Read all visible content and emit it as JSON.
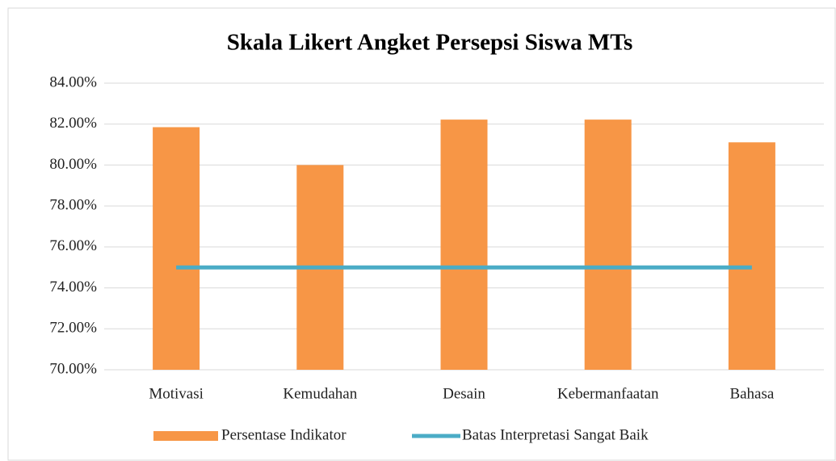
{
  "chart_data": {
    "type": "bar",
    "title": "Skala Likert Angket Persepsi Siswa MTs",
    "categories": [
      "Motivasi",
      "Kemudahan",
      "Desain",
      "Kebermanfaatan",
      "Bahasa"
    ],
    "series": [
      {
        "name": "Persentase Indikator",
        "type": "bar",
        "color": "#f79646",
        "values": [
          81.85,
          80.0,
          82.22,
          82.22,
          81.11
        ]
      },
      {
        "name": "Batas Interpretasi Sangat Baik",
        "type": "line",
        "color": "#4bacc6",
        "values": [
          75,
          75,
          75,
          75,
          75
        ]
      }
    ],
    "ylim": [
      70,
      84
    ],
    "yticks": [
      {
        "value": 70,
        "label": "70.00%"
      },
      {
        "value": 72,
        "label": "72.00%"
      },
      {
        "value": 74,
        "label": "74.00%"
      },
      {
        "value": 76,
        "label": "76.00%"
      },
      {
        "value": 78,
        "label": "78.00%"
      },
      {
        "value": 80,
        "label": "80.00%"
      },
      {
        "value": 82,
        "label": "82.00%"
      },
      {
        "value": 84,
        "label": "84.00%"
      }
    ],
    "grid": true,
    "legend": "bottom"
  }
}
